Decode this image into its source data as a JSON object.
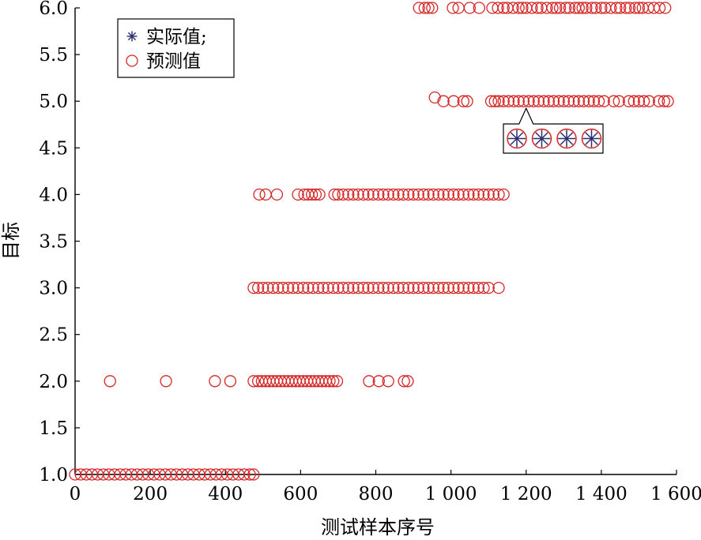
{
  "chart_data": {
    "type": "scatter",
    "title": "",
    "xlabel": "测试样本序号",
    "ylabel": "目标",
    "xlim": [
      0,
      1600
    ],
    "ylim": [
      1.0,
      6.0
    ],
    "x_ticks": [
      {
        "value": 0,
        "label": "0"
      },
      {
        "value": 200,
        "label": "200"
      },
      {
        "value": 400,
        "label": "400"
      },
      {
        "value": 600,
        "label": "600"
      },
      {
        "value": 800,
        "label": "800"
      },
      {
        "value": 1000,
        "label": "1 000"
      },
      {
        "value": 1200,
        "label": "1 200"
      },
      {
        "value": 1400,
        "label": "1 400"
      },
      {
        "value": 1600,
        "label": "1 600"
      }
    ],
    "y_ticks": [
      {
        "value": 1.0,
        "label": "1.0"
      },
      {
        "value": 1.5,
        "label": "1.5"
      },
      {
        "value": 2.0,
        "label": "2.0"
      },
      {
        "value": 2.5,
        "label": "2.5"
      },
      {
        "value": 3.0,
        "label": "3.0"
      },
      {
        "value": 3.5,
        "label": "3.5"
      },
      {
        "value": 4.0,
        "label": "4.0"
      },
      {
        "value": 4.5,
        "label": "4.5"
      },
      {
        "value": 5.0,
        "label": "5.0"
      },
      {
        "value": 5.5,
        "label": "5.5"
      },
      {
        "value": 6.0,
        "label": "6.0"
      }
    ],
    "grid": false,
    "legend_position": "top-left",
    "legend": [
      {
        "label": "实际值;",
        "marker": "asterisk",
        "color": "#2b2d6e"
      },
      {
        "label": "预测值",
        "marker": "circle",
        "color": "#d62728"
      }
    ],
    "colors": {
      "actual": "#2b2d6e",
      "predicted": "#d62728"
    },
    "series": [
      {
        "name": "预测值",
        "marker": "circle",
        "groups": [
          {
            "y": 1.0,
            "x": [
              0,
              15,
              30,
              45,
              60,
              75,
              90,
              105,
              120,
              135,
              150,
              165,
              180,
              195,
              210,
              225,
              240,
              255,
              270,
              285,
              300,
              315,
              330,
              345,
              360,
              375,
              390,
              405,
              420,
              435,
              450,
              465,
              475
            ]
          },
          {
            "y": 2.0,
            "x": [
              93,
              242,
              372,
              413,
              475,
              487,
              497,
              507,
              517,
              527,
              537,
              547,
              557,
              567,
              577,
              587,
              597,
              607,
              617,
              627,
              637,
              647,
              657,
              667,
              677,
              687,
              697,
              782,
              808,
              833,
              875,
              885
            ]
          },
          {
            "y": 3.0,
            "x": [
              475,
              487,
              500,
              513,
              527,
              540,
              553,
              567,
              580,
              593,
              607,
              620,
              633,
              647,
              660,
              673,
              687,
              700,
              713,
              727,
              740,
              753,
              767,
              780,
              793,
              807,
              820,
              833,
              847,
              860,
              873,
              887,
              900,
              913,
              927,
              940,
              953,
              967,
              980,
              993,
              1007,
              1020,
              1033,
              1047,
              1060,
              1073,
              1087,
              1100,
              1127
            ]
          },
          {
            "y": 4.0,
            "x": [
              490,
              507,
              537,
              593,
              610,
              620,
              630,
              640,
              650,
              690,
              700,
              713,
              727,
              740,
              753,
              767,
              780,
              793,
              807,
              820,
              833,
              847,
              860,
              873,
              887,
              900,
              913,
              927,
              940,
              953,
              967,
              980,
              993,
              1007,
              1020,
              1033,
              1047,
              1060,
              1073,
              1087,
              1100,
              1113,
              1127,
              1140
            ]
          },
          {
            "y": 5.04,
            "x": [
              957
            ]
          },
          {
            "y": 5.0,
            "x": [
              980,
              1007,
              1033,
              1043,
              1107,
              1117,
              1127,
              1140,
              1153,
              1167,
              1180,
              1193,
              1207,
              1220,
              1233,
              1247,
              1260,
              1273,
              1287,
              1300,
              1313,
              1327,
              1340,
              1353,
              1367,
              1380,
              1393,
              1407,
              1433,
              1447,
              1473,
              1487,
              1500,
              1513,
              1527,
              1553,
              1567,
              1577
            ]
          },
          {
            "y": 6.0,
            "x": [
              915,
              930,
              940,
              950,
              1005,
              1020,
              1050,
              1075,
              1110,
              1125,
              1140,
              1150,
              1165,
              1180,
              1190,
              1200,
              1215,
              1230,
              1240,
              1255,
              1270,
              1280,
              1290,
              1305,
              1315,
              1330,
              1340,
              1350,
              1360,
              1375,
              1385,
              1400,
              1410,
              1425,
              1440,
              1450,
              1465,
              1475,
              1490,
              1500,
              1510,
              1525,
              1540,
              1555,
              1570
            ]
          }
        ]
      },
      {
        "name": "实际值;",
        "marker": "asterisk",
        "visible": "inset-only"
      }
    ],
    "annotations": [
      {
        "type": "zoom-callout",
        "target": {
          "x": 1200,
          "y": 5.0
        },
        "content": "overlapping 实际值 and 预测值 markers",
        "count": 4
      }
    ]
  }
}
